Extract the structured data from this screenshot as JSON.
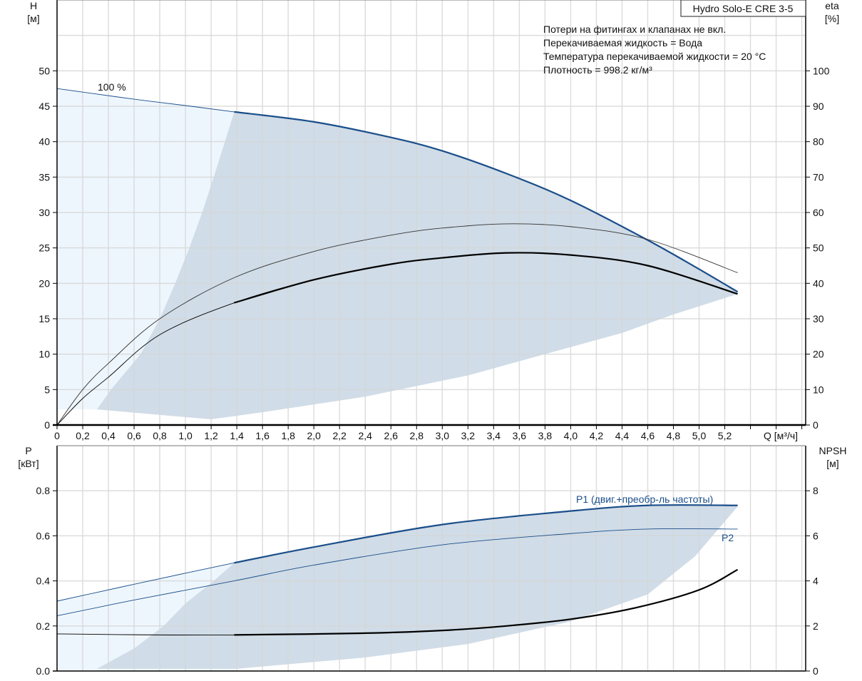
{
  "chart_data": [
    {
      "type": "line",
      "title": "Hydro Solo-E CRE 3-5",
      "notes": [
        "Потери на фитингах и клапанах не вкл.",
        "Перекачиваемая жидкость = Вода",
        "Температура перекачиваемой жидкости = 20 °C",
        "Плотность = 998.2 кг/м³"
      ],
      "xlabel": "Q [м³/ч]",
      "ylabel_left": [
        "H",
        "[м]"
      ],
      "ylabel_right": [
        "eta",
        "[%]"
      ],
      "xlim": [
        0,
        5.83
      ],
      "ylim_left": [
        0,
        60
      ],
      "ylim_right": [
        0,
        120
      ],
      "x_ticks": [
        "0",
        "0,2",
        "0,4",
        "0,6",
        "0,8",
        "1,0",
        "1,2",
        "1,4",
        "1,6",
        "1,8",
        "2,0",
        "2,2",
        "2,4",
        "2,6",
        "2,8",
        "3,0",
        "3,2",
        "3,4",
        "3,6",
        "3,8",
        "4,0",
        "4,2",
        "4,4",
        "4,6",
        "4,8",
        "5,0",
        "5,2"
      ],
      "y_ticks_left": [
        "0",
        "5",
        "10",
        "15",
        "20",
        "25",
        "30",
        "35",
        "40",
        "45",
        "50"
      ],
      "y_ticks_right": [
        "0",
        "10",
        "20",
        "30",
        "40",
        "50",
        "60",
        "70",
        "80",
        "90",
        "100"
      ],
      "grid": true,
      "curve_label": "100 %",
      "series": [
        {
          "name": "H",
          "axis": "left",
          "color": "#1a4e8a",
          "x": [
            0,
            0.2,
            0.6,
            1.0,
            1.38,
            2.0,
            2.6,
            3.0,
            3.5,
            4.0,
            4.6,
            5.0,
            5.3
          ],
          "y": [
            47.5,
            47.0,
            46.0,
            45.1,
            44.2,
            42.8,
            40.6,
            38.7,
            35.5,
            31.7,
            26.1,
            22.0,
            18.8
          ],
          "thick_from": 1.38
        },
        {
          "name": "eta pump",
          "axis": "right",
          "color": "#333333",
          "x": [
            0,
            0.2,
            0.4,
            0.8,
            1.38,
            2.0,
            2.6,
            3.0,
            3.5,
            4.0,
            4.6,
            5.3
          ],
          "y": [
            0,
            10,
            17.4,
            30,
            41.6,
            49,
            53.6,
            55.6,
            56.8,
            56,
            52.4,
            43
          ]
        },
        {
          "name": "eta total",
          "axis": "right",
          "color": "#000000",
          "x": [
            0,
            0.2,
            0.4,
            0.8,
            1.38,
            2.0,
            2.6,
            3.0,
            3.5,
            4.0,
            4.6,
            5.3
          ],
          "y": [
            0,
            7.5,
            13.5,
            25.5,
            34.5,
            41,
            45.4,
            47.2,
            48.6,
            48,
            45,
            37
          ],
          "thick_from": 1.38
        }
      ],
      "regions": [
        {
          "name": "light-area",
          "color": "#eef6fd",
          "x": [
            0,
            0.31,
            0.42,
            0.65,
            0.8,
            0.92,
            1.03,
            1.13,
            1.22,
            1.38
          ],
          "y_low": [
            2.2,
            2.2,
            5,
            10,
            15,
            20,
            25,
            30,
            35,
            44.2
          ]
        },
        {
          "name": "operating-area",
          "color": "#d0dce7",
          "boundary_left_x": [
            0.31,
            0.42,
            0.65,
            0.8,
            0.92,
            1.03,
            1.13,
            1.22,
            1.38
          ],
          "boundary_left_y": [
            2.2,
            5,
            10,
            15,
            20,
            25,
            30,
            35,
            44.2
          ],
          "bottom_x": [
            0.31,
            1.2,
            1.6,
            2.4,
            3.2,
            3.8,
            4.4,
            4.8,
            5.3
          ],
          "bottom_y": [
            2.2,
            0.8,
            1.8,
            4.0,
            7.0,
            10.0,
            13.0,
            15.6,
            18.5
          ]
        }
      ]
    },
    {
      "type": "line",
      "xlabel": "Q [м³/ч]",
      "ylabel_left": [
        "P",
        "[кВт]"
      ],
      "ylabel_right": [
        "NPSH",
        "[м]"
      ],
      "xlim": [
        0,
        5.83
      ],
      "ylim_left": [
        0,
        1.0
      ],
      "ylim_right": [
        0,
        10
      ],
      "y_ticks_left": [
        "0.0",
        "0.2",
        "0.4",
        "0.6",
        "0.8"
      ],
      "y_ticks_right": [
        "0",
        "2",
        "4",
        "6",
        "8"
      ],
      "grid": true,
      "series": [
        {
          "name": "P1",
          "label": "P1 (двиг.+преобр-ль частоты)",
          "axis": "left",
          "color": "#1a4e8a",
          "x": [
            0,
            0.6,
            1.38,
            2.0,
            3.0,
            4.0,
            4.6,
            5.3
          ],
          "y": [
            0.31,
            0.385,
            0.48,
            0.55,
            0.65,
            0.71,
            0.735,
            0.735
          ],
          "thick_from": 1.38
        },
        {
          "name": "P2",
          "label": "P2",
          "axis": "left",
          "color": "#1a4e8a",
          "x": [
            0,
            0.6,
            1.38,
            2.0,
            3.0,
            4.0,
            4.6,
            5.3
          ],
          "y": [
            0.245,
            0.315,
            0.4,
            0.47,
            0.56,
            0.61,
            0.63,
            0.63
          ]
        },
        {
          "name": "NPSH",
          "axis": "right",
          "color": "#000000",
          "x": [
            0,
            0.6,
            1.38,
            2.4,
            3.0,
            3.5,
            4.0,
            4.5,
            5.0,
            5.3
          ],
          "y": [
            1.65,
            1.61,
            1.6,
            1.68,
            1.8,
            2.0,
            2.3,
            2.8,
            3.6,
            4.5
          ],
          "thick_from": 1.38
        }
      ],
      "regions": [
        {
          "name": "light-area",
          "color": "#eef6fd",
          "x": [
            0,
            1.38
          ],
          "y_low": [
            0,
            0
          ]
        },
        {
          "name": "operating-area",
          "color": "#d0dce7",
          "boundary_left_x": [
            0.31,
            0.6,
            0.83,
            1.0,
            1.22,
            1.38
          ],
          "boundary_left_y": [
            0.01,
            0.1,
            0.2,
            0.3,
            0.4,
            0.48
          ],
          "bottom_x": [
            0.31,
            1.4,
            2.4,
            3.2,
            4.0,
            4.6,
            4.97,
            5.3
          ],
          "bottom_y": [
            0.01,
            0.01,
            0.06,
            0.12,
            0.22,
            0.34,
            0.51,
            0.73
          ]
        }
      ]
    }
  ]
}
